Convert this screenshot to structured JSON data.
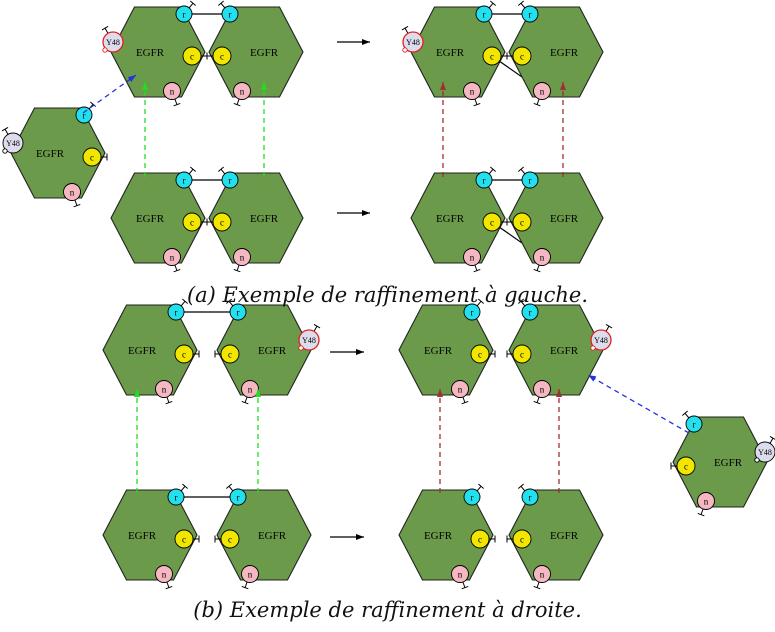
{
  "captions": {
    "a": "(a) Exemple de raffinement à gauche.",
    "b": "(b) Exemple de raffinement à droite."
  },
  "labels": {
    "protein": "EGFR",
    "site_r": "r",
    "site_c": "c",
    "site_n": "n",
    "site_y": "Y48"
  },
  "colors": {
    "hexagon_fill": "#6a9a4a",
    "hexagon_stroke": "#222222",
    "site_r": "#22e0ee",
    "site_c": "#f2e600",
    "site_n": "#f5b7c2",
    "site_y": "#dcdcec",
    "site_y_highlight": "#e02020",
    "arrow_green": "#22dd22",
    "arrow_brown": "#a03030",
    "arrow_blue": "#2233dd",
    "arrow_black": "#000000"
  }
}
